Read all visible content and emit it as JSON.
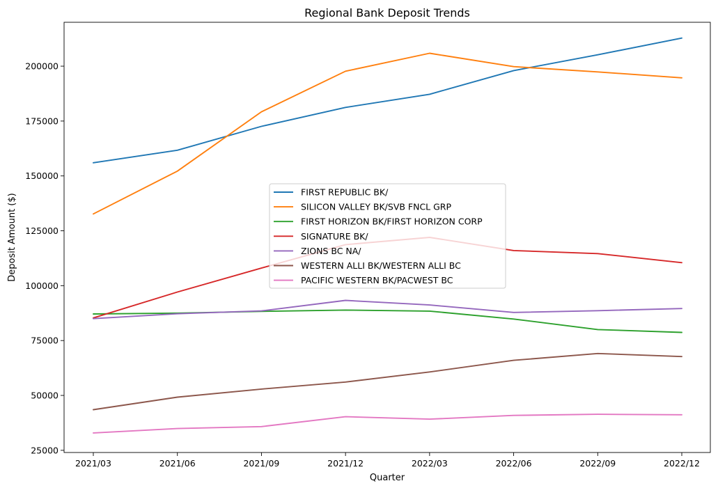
{
  "chart_data": {
    "type": "line",
    "title": "Regional Bank Deposit Trends",
    "xlabel": "Quarter",
    "ylabel": "Deposit Amount ($)",
    "categories": [
      "2021/03",
      "2021/06",
      "2021/09",
      "2021/12",
      "2022/03",
      "2022/06",
      "2022/09",
      "2022/12"
    ],
    "ylim": [
      24000,
      220000
    ],
    "yticks": [
      25000,
      50000,
      75000,
      100000,
      125000,
      150000,
      175000,
      200000
    ],
    "grid": false,
    "legend_position": "center",
    "series": [
      {
        "name": "FIRST REPUBLIC BK/",
        "color": "#1f77b4",
        "values": [
          156000,
          161700,
          172600,
          181200,
          187200,
          198000,
          205200,
          212800
        ]
      },
      {
        "name": "SILICON VALLEY BK/SVB FNCL GRP",
        "color": "#ff7f0e",
        "values": [
          132700,
          152200,
          179200,
          197700,
          205900,
          199800,
          197400,
          194700
        ]
      },
      {
        "name": "FIRST HORIZON BK/FIRST HORIZON CORP",
        "color": "#2ca02c",
        "values": [
          87100,
          87500,
          88300,
          88900,
          88400,
          84800,
          80000,
          78700
        ]
      },
      {
        "name": "SIGNATURE BK/",
        "color": "#d62728",
        "values": [
          85300,
          97100,
          108000,
          118700,
          122000,
          116000,
          114600,
          110500
        ]
      },
      {
        "name": "ZIONS BC NA/",
        "color": "#9467bd",
        "values": [
          85000,
          87200,
          88500,
          93300,
          91200,
          87800,
          88600,
          89600
        ]
      },
      {
        "name": "WESTERN ALLI BK/WESTERN ALLI BC",
        "color": "#8c564b",
        "values": [
          43500,
          49200,
          52900,
          56100,
          60700,
          66000,
          69100,
          67700
        ]
      },
      {
        "name": "PACIFIC WESTERN BK/PACWEST BC",
        "color": "#e377c2",
        "values": [
          32900,
          34900,
          35800,
          40300,
          39200,
          40900,
          41400,
          41200
        ]
      }
    ]
  }
}
